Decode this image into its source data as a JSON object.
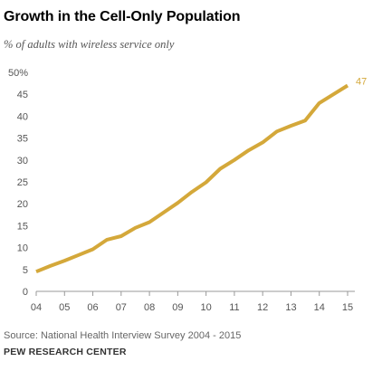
{
  "header": {
    "title": "Growth in the Cell-Only Population",
    "subtitle": "% of adults with wireless service only"
  },
  "footer": {
    "source": "Source: National Health Interview Survey 2004 - 2015",
    "org": "PEW RESEARCH CENTER"
  },
  "chart_data": {
    "type": "line",
    "title": "Growth in the Cell-Only Population",
    "subtitle": "% of adults with wireless service only",
    "xlabel": "",
    "ylabel": "",
    "x_tick_labels": [
      "04",
      "05",
      "06",
      "07",
      "08",
      "09",
      "10",
      "11",
      "12",
      "13",
      "14",
      "15"
    ],
    "y_tick_labels": [
      "0",
      "5",
      "10",
      "15",
      "20",
      "25",
      "30",
      "35",
      "40",
      "45",
      "50%"
    ],
    "xlim": [
      2004,
      2015.3
    ],
    "ylim": [
      0,
      50
    ],
    "grid": false,
    "line_color": "#d4a83a",
    "series": [
      {
        "x": [
          2004.0,
          2004.5,
          2005.0,
          2005.5,
          2006.0,
          2006.5,
          2007.0,
          2007.5,
          2008.0,
          2008.5,
          2009.0,
          2009.5,
          2010.0,
          2010.5,
          2011.0,
          2011.5,
          2012.0,
          2012.5,
          2013.0,
          2013.5,
          2014.0,
          2014.5,
          2015.0
        ],
        "values": [
          4.5,
          5.8,
          7.0,
          8.3,
          9.6,
          11.8,
          12.6,
          14.5,
          15.8,
          18.0,
          20.2,
          22.7,
          24.9,
          28.0,
          30.0,
          32.2,
          34.0,
          36.5,
          37.8,
          39.0,
          43.0,
          45.0,
          47.0
        ]
      }
    ],
    "end_label": "47",
    "end_label_color": "#d4a83a"
  }
}
